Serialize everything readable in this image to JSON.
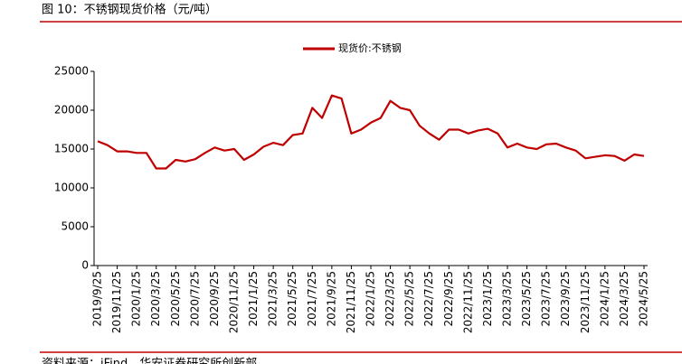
{
  "title": "图 10：不锈钢现货价格（元/吨）",
  "source": "资料来源：iFind，华安证券研究所创新部",
  "chart_data": {
    "type": "line",
    "categories": [
      "2019/9/25",
      null,
      "2019/11/25",
      null,
      "2020/1/25",
      null,
      "2020/3/25",
      null,
      "2020/5/25",
      null,
      "2020/7/25",
      null,
      "2020/9/25",
      null,
      "2020/11/25",
      null,
      "2021/1/25",
      null,
      "2021/3/25",
      null,
      "2021/5/25",
      null,
      "2021/7/25",
      null,
      "2021/9/25",
      null,
      "2021/11/25",
      null,
      "2022/1/25",
      null,
      "2022/3/25",
      null,
      "2022/5/25",
      null,
      "2022/7/25",
      null,
      "2022/9/25",
      null,
      "2022/11/25",
      null,
      "2023/1/25",
      null,
      "2023/3/25",
      null,
      "2023/5/25",
      null,
      "2023/7/25",
      null,
      "2023/9/25",
      null,
      "2023/11/25",
      null,
      "2024/1/25",
      null,
      "2024/3/25",
      null,
      "2024/5/25"
    ],
    "series": [
      {
        "name": "现货价:不锈钢",
        "color": "#c00000",
        "values": [
          16000,
          15500,
          14700,
          14700,
          14500,
          14500,
          12500,
          12500,
          13600,
          13400,
          13700,
          14500,
          15200,
          14800,
          15000,
          13600,
          14300,
          15300,
          15800,
          15500,
          16800,
          17000,
          20300,
          19000,
          21900,
          21500,
          17000,
          17500,
          18400,
          19000,
          21200,
          20300,
          20000,
          18000,
          17000,
          16200,
          17500,
          17500,
          17000,
          17400,
          17600,
          17000,
          15200,
          15700,
          15200,
          15000,
          15600,
          15700,
          15200,
          14800,
          13800,
          14000,
          14200,
          14100,
          13500,
          14300,
          14100
        ]
      }
    ],
    "ylim": [
      0,
      25000
    ],
    "yticks": [
      0,
      5000,
      10000,
      15000,
      20000,
      25000
    ],
    "grid": false,
    "legend": "top"
  }
}
